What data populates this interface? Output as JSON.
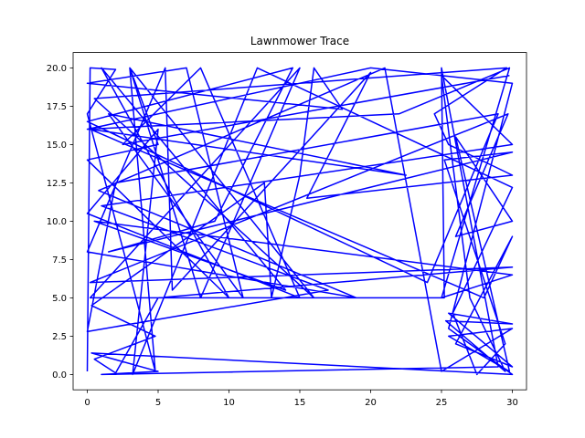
{
  "chart_data": {
    "type": "line",
    "title": "Lawnmower Trace",
    "series": [
      {
        "color": "#0000ff",
        "x": [
          0,
          0.2,
          2,
          0,
          4.8,
          3,
          5,
          0,
          10,
          1,
          14,
          0.5,
          30,
          25,
          29.8,
          22,
          0,
          20,
          30,
          25.5,
          30,
          0.3,
          5,
          1,
          29,
          25,
          25.2,
          0.2,
          15,
          8,
          3,
          16,
          0.5,
          29.6,
          24.5,
          25.5,
          30,
          15.5,
          20,
          6,
          5.5,
          0,
          19,
          0.8,
          21,
          25,
          30,
          25.5,
          29.8,
          26,
          30,
          26,
          29.7,
          0.2,
          30,
          5,
          2,
          0.5,
          4.8,
          0.3,
          12.5,
          13,
          15,
          16,
          18,
          0,
          7,
          11,
          1.5,
          22.5,
          0.2,
          28,
          30,
          26,
          30,
          25.5,
          30,
          25.3,
          29.5,
          27,
          25,
          30,
          1,
          17,
          0,
          2,
          29,
          24,
          0,
          14.5,
          9,
          1.5,
          30,
          25.2,
          29.5,
          27.5,
          25.8,
          30,
          12,
          3.2,
          5,
          0,
          15,
          8,
          2.5,
          29.8
        ],
        "values": [
          0.2,
          20,
          19.9,
          17,
          0.2,
          20,
          15,
          14,
          5,
          20,
          5.5,
          10,
          6.5,
          5,
          20,
          17,
          16,
          20,
          19,
          3,
          0,
          1.4,
          0.2,
          0,
          0.5,
          20,
          5,
          5,
          20,
          5,
          20,
          5,
          18,
          20,
          17,
          15,
          13,
          11.5,
          19.7,
          5.5,
          20,
          8,
          5,
          12,
          20,
          0.2,
          3,
          2.5,
          0.2,
          15.5,
          10,
          9,
          17,
          6,
          7,
          5,
          0.1,
          1,
          2.5,
          4.5,
          12.5,
          5,
          13,
          20,
          17.3,
          19,
          20,
          5,
          17,
          13,
          16,
          5,
          9,
          2,
          0.5,
          4,
          3.3,
          3.5,
          0.2,
          5,
          19.5,
          15,
          11,
          5.5,
          2.8,
          12.5,
          17,
          6,
          16.5,
          20,
          10,
          8,
          14.5,
          14,
          2,
          0,
          4,
          12.2,
          20,
          0,
          16,
          10.5,
          5,
          20,
          15,
          19.5
        ]
      }
    ],
    "xlim": [
      -1,
      31
    ],
    "xticks": [
      0,
      5,
      10,
      15,
      20,
      25,
      30
    ],
    "ylim": [
      -1,
      21
    ],
    "yticks": [
      {
        "value": 0,
        "label": "0.0"
      },
      {
        "value": 2.5,
        "label": "2.5"
      },
      {
        "value": 5,
        "label": "5.0"
      },
      {
        "value": 7.5,
        "label": "7.5"
      },
      {
        "value": 10,
        "label": "10.0"
      },
      {
        "value": 12.5,
        "label": "12.5"
      },
      {
        "value": 15,
        "label": "15.0"
      },
      {
        "value": 17.5,
        "label": "17.5"
      },
      {
        "value": 20,
        "label": "20.0"
      }
    ]
  }
}
